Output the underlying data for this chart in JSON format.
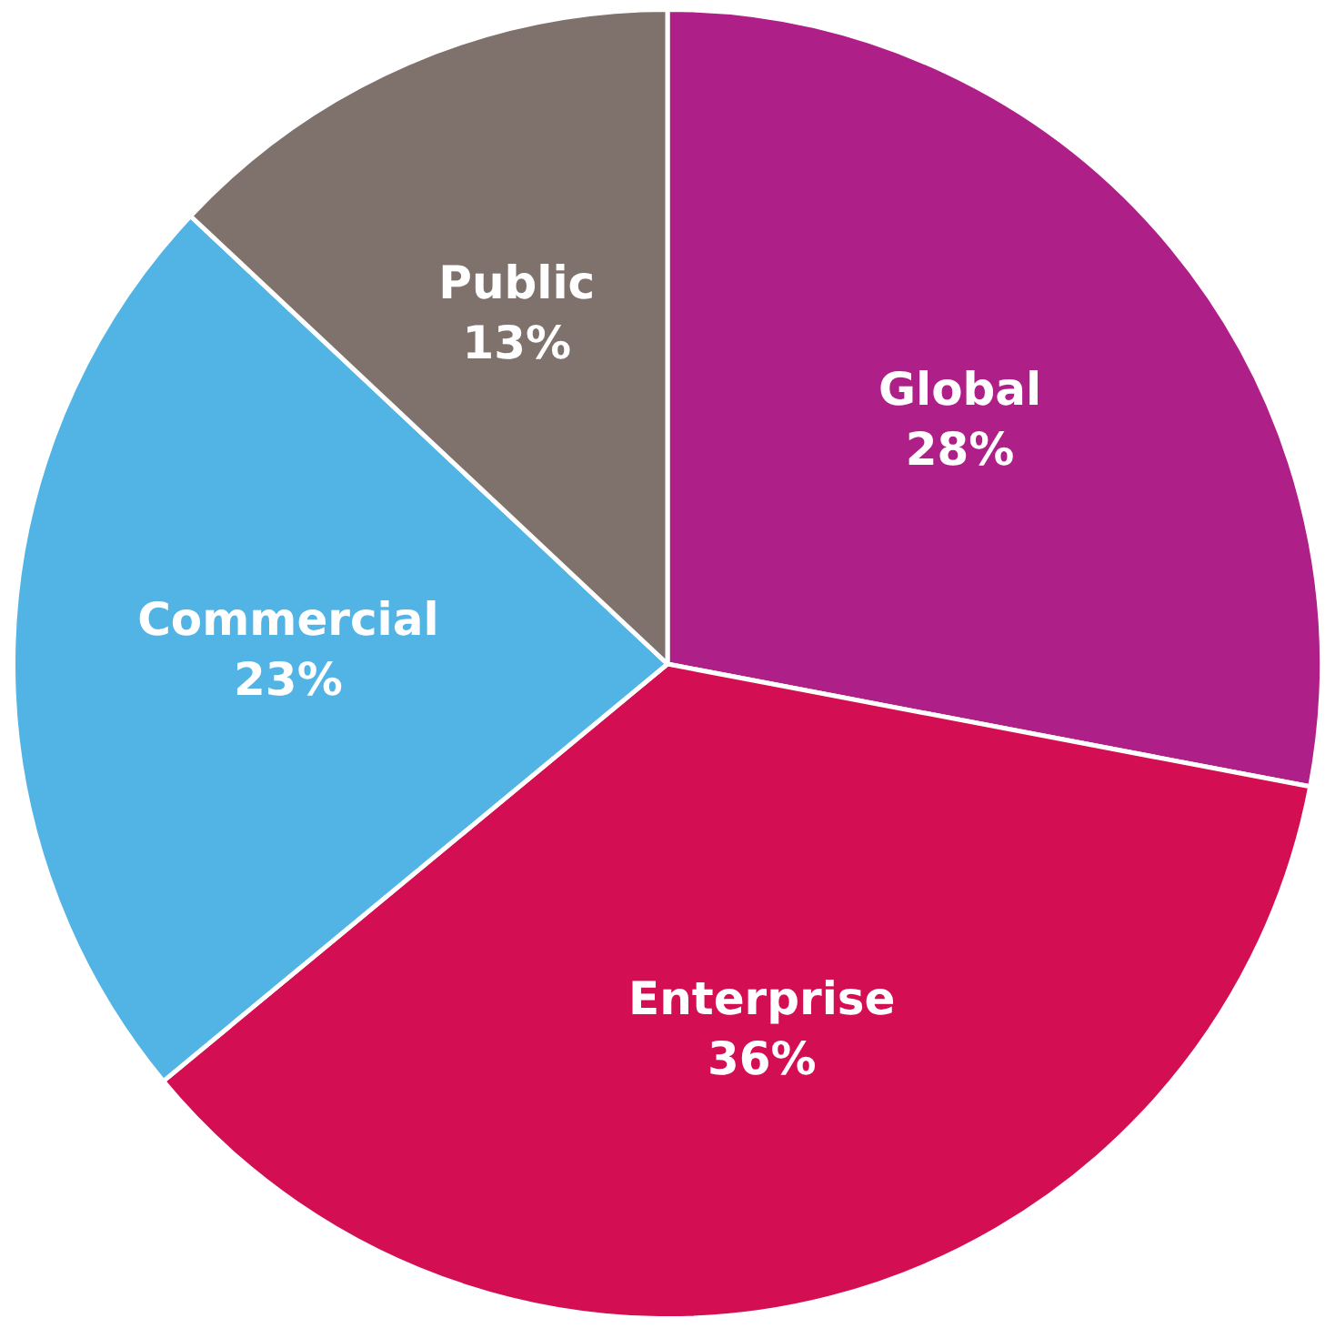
{
  "chart_data": {
    "type": "pie",
    "categories": [
      "Global",
      "Enterprise",
      "Commercial",
      "Public"
    ],
    "values": [
      28,
      36,
      23,
      13
    ],
    "value_labels": [
      "28%",
      "36%",
      "23%",
      "13%"
    ],
    "colors": [
      "#ae1f88",
      "#d40e52",
      "#52b4e5",
      "#7f716c"
    ],
    "legend": false
  }
}
